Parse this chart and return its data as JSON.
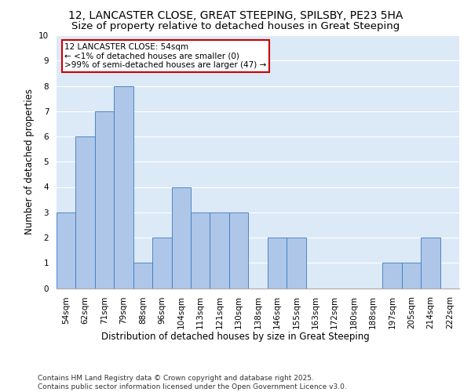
{
  "title_line1": "12, LANCASTER CLOSE, GREAT STEEPING, SPILSBY, PE23 5HA",
  "title_line2": "Size of property relative to detached houses in Great Steeping",
  "xlabel": "Distribution of detached houses by size in Great Steeping",
  "ylabel": "Number of detached properties",
  "bins": [
    "54sqm",
    "62sqm",
    "71sqm",
    "79sqm",
    "88sqm",
    "96sqm",
    "104sqm",
    "113sqm",
    "121sqm",
    "130sqm",
    "138sqm",
    "146sqm",
    "155sqm",
    "163sqm",
    "172sqm",
    "180sqm",
    "188sqm",
    "197sqm",
    "205sqm",
    "214sqm",
    "222sqm"
  ],
  "values": [
    3,
    6,
    7,
    8,
    1,
    2,
    4,
    3,
    3,
    3,
    0,
    2,
    2,
    0,
    0,
    0,
    0,
    1,
    1,
    2,
    0
  ],
  "bar_color": "#aec6e8",
  "bar_edge_color": "#3a7abf",
  "background_color": "#dce9f7",
  "grid_color": "#ffffff",
  "annotation_box_text": "12 LANCASTER CLOSE: 54sqm\n← <1% of detached houses are smaller (0)\n>99% of semi-detached houses are larger (47) →",
  "annotation_box_color": "#ffffff",
  "annotation_box_edge_color": "#cc0000",
  "footer_line1": "Contains HM Land Registry data © Crown copyright and database right 2025.",
  "footer_line2": "Contains public sector information licensed under the Open Government Licence v3.0.",
  "ylim": [
    0,
    10
  ],
  "yticks": [
    0,
    1,
    2,
    3,
    4,
    5,
    6,
    7,
    8,
    9,
    10
  ],
  "title_fontsize": 10,
  "subtitle_fontsize": 9.5,
  "axis_label_fontsize": 8.5,
  "tick_fontsize": 7.5,
  "annotation_fontsize": 7.5,
  "footer_fontsize": 6.5
}
